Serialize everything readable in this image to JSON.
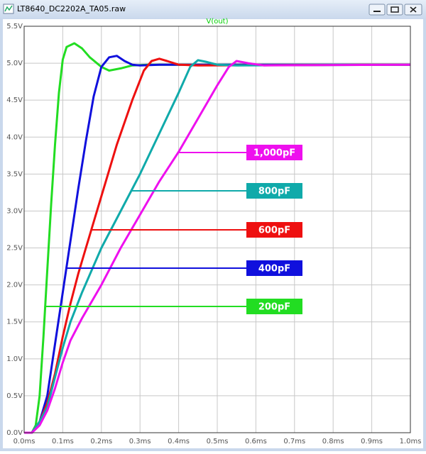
{
  "window": {
    "title": "LT8640_DC2202A_TA05.raw"
  },
  "chart_data": {
    "type": "line",
    "title": "V(out)",
    "title_color": "#00d000",
    "xlim": [
      0,
      1.0
    ],
    "ylim": [
      0,
      5.5
    ],
    "grid": true,
    "xticks": [
      {
        "value": 0,
        "label": "0.0ms"
      },
      {
        "value": 0.1,
        "label": "0.1ms"
      },
      {
        "value": 0.2,
        "label": "0.2ms"
      },
      {
        "value": 0.3,
        "label": "0.3ms"
      },
      {
        "value": 0.4,
        "label": "0.4ms"
      },
      {
        "value": 0.5,
        "label": "0.5ms"
      },
      {
        "value": 0.6,
        "label": "0.6ms"
      },
      {
        "value": 0.7,
        "label": "0.7ms"
      },
      {
        "value": 0.8,
        "label": "0.8ms"
      },
      {
        "value": 0.9,
        "label": "0.9ms"
      },
      {
        "value": 1.0,
        "label": "1.0ms"
      }
    ],
    "yticks": [
      {
        "value": 0,
        "label": "0.0V"
      },
      {
        "value": 0.5,
        "label": "0.5V"
      },
      {
        "value": 1.0,
        "label": "1.0V"
      },
      {
        "value": 1.5,
        "label": "1.5V"
      },
      {
        "value": 2.0,
        "label": "2.0V"
      },
      {
        "value": 2.5,
        "label": "2.5V"
      },
      {
        "value": 3.0,
        "label": "3.0V"
      },
      {
        "value": 3.5,
        "label": "3.5V"
      },
      {
        "value": 4.0,
        "label": "4.0V"
      },
      {
        "value": 4.5,
        "label": "4.5V"
      },
      {
        "value": 5.0,
        "label": "5.0V"
      },
      {
        "value": 5.5,
        "label": "5.5V"
      }
    ],
    "series": [
      {
        "name": "200pF",
        "color": "#22dd22",
        "x": [
          0,
          0.02,
          0.03,
          0.04,
          0.05,
          0.06,
          0.07,
          0.08,
          0.09,
          0.1,
          0.11,
          0.13,
          0.15,
          0.17,
          0.2,
          0.22,
          0.25,
          0.28,
          0.32,
          0.4,
          1.0
        ],
        "values": [
          0,
          0,
          0.1,
          0.5,
          1.3,
          2.2,
          3.1,
          3.9,
          4.6,
          5.05,
          5.22,
          5.27,
          5.2,
          5.08,
          4.95,
          4.9,
          4.93,
          4.97,
          4.98,
          4.98,
          4.98
        ]
      },
      {
        "name": "400pF",
        "color": "#1010dd",
        "x": [
          0,
          0.02,
          0.04,
          0.06,
          0.08,
          0.1,
          0.12,
          0.14,
          0.16,
          0.18,
          0.2,
          0.22,
          0.24,
          0.26,
          0.28,
          0.3,
          0.35,
          1.0
        ],
        "values": [
          0,
          0,
          0.15,
          0.5,
          1.2,
          1.9,
          2.6,
          3.3,
          3.95,
          4.55,
          4.95,
          5.08,
          5.1,
          5.03,
          4.98,
          4.97,
          4.98,
          4.98
        ]
      },
      {
        "name": "600pF",
        "color": "#ee1010",
        "x": [
          0,
          0.02,
          0.04,
          0.06,
          0.08,
          0.1,
          0.12,
          0.14,
          0.16,
          0.2,
          0.24,
          0.28,
          0.31,
          0.33,
          0.35,
          0.37,
          0.4,
          0.45,
          1.0
        ],
        "values": [
          0,
          0,
          0.15,
          0.4,
          0.8,
          1.3,
          1.75,
          2.15,
          2.5,
          3.2,
          3.9,
          4.5,
          4.9,
          5.03,
          5.06,
          5.03,
          4.98,
          4.97,
          4.98
        ]
      },
      {
        "name": "800pF",
        "color": "#10aaaa",
        "x": [
          0,
          0.02,
          0.04,
          0.06,
          0.08,
          0.1,
          0.12,
          0.15,
          0.2,
          0.25,
          0.3,
          0.35,
          0.4,
          0.43,
          0.45,
          0.47,
          0.5,
          0.55,
          1.0
        ],
        "values": [
          0,
          0,
          0.15,
          0.35,
          0.75,
          1.15,
          1.5,
          1.9,
          2.5,
          3.0,
          3.5,
          4.05,
          4.6,
          4.95,
          5.04,
          5.02,
          4.98,
          4.97,
          4.98
        ]
      },
      {
        "name": "1,000pF",
        "color": "#ee10ee",
        "x": [
          0,
          0.02,
          0.04,
          0.06,
          0.08,
          0.1,
          0.12,
          0.15,
          0.2,
          0.25,
          0.3,
          0.35,
          0.4,
          0.45,
          0.5,
          0.53,
          0.55,
          0.58,
          0.62,
          1.0
        ],
        "values": [
          0,
          0,
          0.1,
          0.3,
          0.6,
          0.95,
          1.25,
          1.55,
          2.0,
          2.5,
          2.95,
          3.4,
          3.8,
          4.25,
          4.7,
          4.95,
          5.03,
          5.0,
          4.97,
          4.98
        ]
      }
    ]
  }
}
